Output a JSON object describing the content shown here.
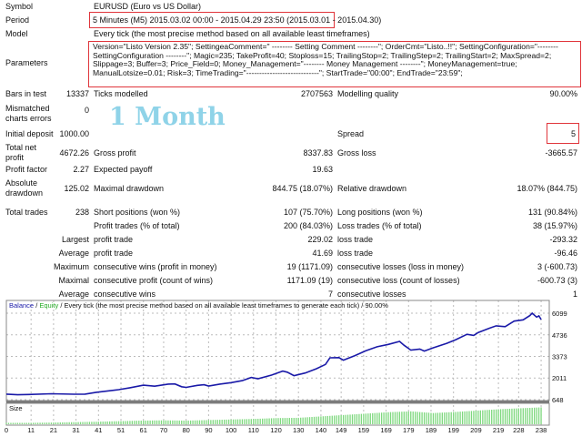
{
  "header": {
    "symbol_label": "Symbol",
    "symbol_value": "EURUSD (Euro vs US Dollar)",
    "period_label": "Period",
    "period_value": "5 Minutes (M5) 2015.03.02 00:00 - 2015.04.29 23:50 (2015.03.01 - 2015.04.30)",
    "model_label": "Model",
    "model_value": "Every tick (the most precise method based on all available least timeframes)",
    "parameters_label": "Parameters",
    "parameters_value": "Version=\"Listo Version 2.35\"; SettingeaComment=\" -------- Setting Comment --------\"; OrderCmt=\"Listo..!!\"; SettingConfiguration=\"-------- SettingConfiguration --------\"; Magic=235; TakeProfit=40; Stoploss=15; TrailingStop=2; TrailingStep=2; TrailingStart=2; MaxSpread=2; Slippage=3; Buffer=3; Price_Field=0; Money_Management=\"-------- Money Management --------\"; MoneyManagement=true; ManualLotsize=0.01; Risk=3; TimeTrading=\"----------------------------\"; StartTrade=\"00:00\"; EndTrade=\"23:59\";"
  },
  "watermark": "1 Month",
  "stats": {
    "bars_label": "Bars in test",
    "bars_value": "13337",
    "ticks_label": "Ticks modelled",
    "ticks_value": "2707563",
    "quality_label": "Modelling quality",
    "quality_value": "90.00%",
    "mismatch_label1": "Mismatched",
    "mismatch_label2": "charts errors",
    "mismatch_value": "0",
    "deposit_label": "Initial deposit",
    "deposit_value": "1000.00",
    "spread_label": "Spread",
    "spread_value": "5",
    "netprofit_label1": "Total net",
    "netprofit_label2": "profit",
    "netprofit_value": "4672.26",
    "grossprofit_label": "Gross profit",
    "grossprofit_value": "8337.83",
    "grossloss_label": "Gross loss",
    "grossloss_value": "-3665.57",
    "pf_label": "Profit factor",
    "pf_value": "2.27",
    "payoff_label": "Expected payoff",
    "payoff_value": "19.63",
    "absdd_label1": "Absolute",
    "absdd_label2": "drawdown",
    "absdd_value": "125.02",
    "maxdd_label": "Maximal drawdown",
    "maxdd_value": "844.75 (18.07%)",
    "reldd_label": "Relative drawdown",
    "reldd_value": "18.07% (844.75)",
    "trades_label": "Total trades",
    "trades_value": "238",
    "short_label": "Short positions (won %)",
    "short_value": "107 (75.70%)",
    "long_label": "Long positions (won %)",
    "long_value": "131 (90.84%)",
    "profittr_label": "Profit trades (% of total)",
    "profittr_value": "200 (84.03%)",
    "losstr_label": "Loss trades (% of total)",
    "losstr_value": "38 (15.97%)",
    "largest_label": "Largest",
    "largest_profit_label": "profit trade",
    "largest_profit_value": "229.02",
    "largest_loss_label": "loss trade",
    "largest_loss_value": "-293.32",
    "average_label": "Average",
    "average_profit_label": "profit trade",
    "average_profit_value": "41.69",
    "average_loss_label": "loss trade",
    "average_loss_value": "-96.46",
    "maximum_label": "Maximum",
    "maxwins_label": "consecutive wins (profit in money)",
    "maxwins_value": "19 (1171.09)",
    "maxlosses_label": "consecutive losses (loss in money)",
    "maxlosses_value": "3 (-600.73)",
    "maximal_label": "Maximal",
    "maxprofit_label": "consecutive profit (count of wins)",
    "maxprofit_value": "1171.09 (19)",
    "maxloss_label": "consecutive loss (count of losses)",
    "maxloss_value": "-600.73 (3)",
    "avgcons_label": "Average",
    "avgwins_label": "consecutive wins",
    "avgwins_value": "7",
    "avglosses_label": "consecutive losses",
    "avglosses_value": "1"
  },
  "chart_data": {
    "type": "line",
    "legend_balance": "Balance",
    "legend_sep1": " / ",
    "legend_equity": "Equity",
    "legend_rest": " / Every tick (the most precise method based on all available least timeframes to generate each tick) / 90.00%",
    "size_label": "Size",
    "colors": {
      "balance": "#1a1aa8",
      "equity": "#22aa22",
      "size": "#7ed87e"
    },
    "ylim": [
      648,
      6099
    ],
    "y_ticks": [
      "6099",
      "4736",
      "3373",
      "2011",
      "648"
    ],
    "y_tick_values": [
      6099,
      4736,
      3373,
      2011,
      648
    ],
    "xlim": [
      0,
      240
    ],
    "x_ticks": [
      "0",
      "11",
      "21",
      "31",
      "41",
      "51",
      "61",
      "70",
      "80",
      "90",
      "100",
      "110",
      "120",
      "130",
      "140",
      "149",
      "159",
      "169",
      "179",
      "189",
      "199",
      "209",
      "219",
      "228",
      "238"
    ],
    "balance": [
      [
        0,
        1000
      ],
      [
        5,
        960
      ],
      [
        10,
        975
      ],
      [
        20,
        1020
      ],
      [
        30,
        990
      ],
      [
        35,
        1000
      ],
      [
        40,
        1110
      ],
      [
        50,
        1280
      ],
      [
        55,
        1400
      ],
      [
        61,
        1560
      ],
      [
        66,
        1500
      ],
      [
        72,
        1630
      ],
      [
        75,
        1640
      ],
      [
        78,
        1460
      ],
      [
        80,
        1420
      ],
      [
        85,
        1550
      ],
      [
        88,
        1590
      ],
      [
        90,
        1510
      ],
      [
        95,
        1630
      ],
      [
        100,
        1720
      ],
      [
        105,
        1850
      ],
      [
        109,
        2050
      ],
      [
        112,
        1970
      ],
      [
        118,
        2200
      ],
      [
        123,
        2450
      ],
      [
        125,
        2380
      ],
      [
        128,
        2160
      ],
      [
        133,
        2330
      ],
      [
        138,
        2600
      ],
      [
        142,
        2870
      ],
      [
        144,
        3290
      ],
      [
        148,
        3300
      ],
      [
        150,
        3140
      ],
      [
        155,
        3420
      ],
      [
        160,
        3730
      ],
      [
        165,
        3980
      ],
      [
        170,
        4130
      ],
      [
        175,
        4320
      ],
      [
        177,
        4080
      ],
      [
        180,
        3770
      ],
      [
        184,
        3840
      ],
      [
        186,
        3710
      ],
      [
        190,
        3920
      ],
      [
        196,
        4200
      ],
      [
        200,
        4430
      ],
      [
        205,
        4770
      ],
      [
        208,
        4700
      ],
      [
        210,
        4880
      ],
      [
        215,
        5150
      ],
      [
        218,
        5300
      ],
      [
        222,
        5250
      ],
      [
        226,
        5600
      ],
      [
        230,
        5680
      ],
      [
        233,
        5950
      ],
      [
        234,
        6099
      ],
      [
        236,
        5850
      ],
      [
        237,
        5930
      ],
      [
        238,
        5700
      ]
    ],
    "size_values": [
      0.1,
      0.1,
      0.12,
      0.15,
      0.18,
      0.22,
      0.26,
      0.28,
      0.26,
      0.3,
      0.34,
      0.38,
      0.44,
      0.46,
      0.56,
      0.66,
      0.76,
      0.86,
      0.92,
      0.8,
      0.88,
      0.98,
      1.08,
      1.15,
      1.22
    ]
  }
}
